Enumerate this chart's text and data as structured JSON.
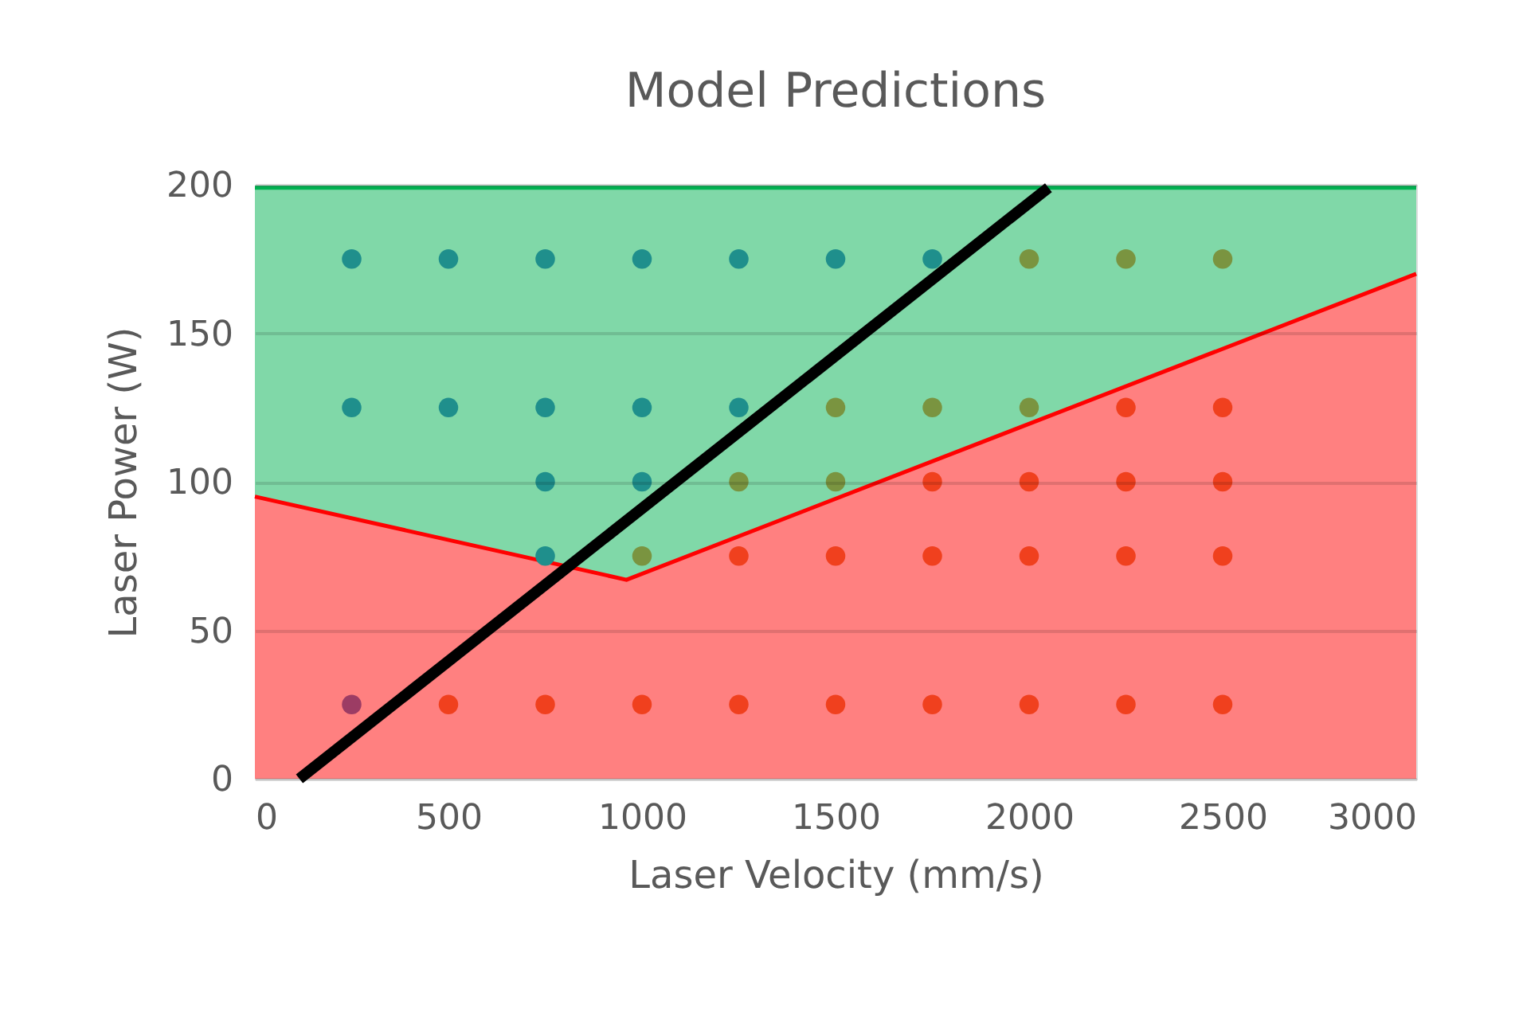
{
  "chart_data": {
    "type": "scatter",
    "title": "Model Predictions",
    "xlabel": "Laser Velocity (mm/s)",
    "ylabel": "Laser Power (W)",
    "xlim": [
      0,
      3000
    ],
    "xticks": [
      0,
      500,
      1000,
      1500,
      2000,
      2500,
      3000
    ],
    "ylim": [
      0,
      200
    ],
    "yticks": [
      0,
      50,
      100,
      150,
      200
    ],
    "grid": "y",
    "series": [
      {
        "type": "area",
        "color": "#80d8a8",
        "x": [
          0,
          3000
        ],
        "values": [
          199,
          199
        ]
      },
      {
        "type": "area",
        "color": "#ff8080",
        "x": [
          0,
          960,
          3000
        ],
        "values": [
          95,
          67,
          170
        ]
      },
      {
        "type": "line",
        "color": "#000000",
        "line_style": "solid",
        "x": [
          115,
          2050
        ],
        "values": [
          0,
          199
        ]
      },
      {
        "type": "scatter",
        "marker": "circle",
        "color": "#1f8f8c",
        "x": [
          250,
          500,
          750,
          1000,
          1250,
          1500,
          1750,
          250,
          500,
          750,
          1000,
          1250,
          750,
          1000,
          750
        ],
        "values": [
          175,
          175,
          175,
          175,
          175,
          175,
          175,
          125,
          125,
          125,
          125,
          125,
          100,
          100,
          75
        ]
      },
      {
        "type": "scatter",
        "marker": "circle",
        "color": "#7a9440",
        "x": [
          2000,
          2250,
          2500,
          1500,
          1750,
          2000,
          1250,
          1500,
          1000
        ],
        "values": [
          175,
          175,
          175,
          125,
          125,
          125,
          100,
          100,
          75
        ]
      },
      {
        "type": "scatter",
        "marker": "circle",
        "color": "#f0401e",
        "x": [
          2250,
          2500,
          1750,
          2000,
          2250,
          2500,
          1250,
          1500,
          1750,
          2000,
          2250,
          2500,
          500,
          750,
          1000,
          1250,
          1500,
          1750,
          2000,
          2250,
          2500
        ],
        "values": [
          125,
          125,
          100,
          100,
          100,
          100,
          75,
          75,
          75,
          75,
          75,
          75,
          25,
          25,
          25,
          25,
          25,
          25,
          25,
          25,
          25
        ]
      },
      {
        "type": "scatter",
        "marker": "circle",
        "color": "#9c3c64",
        "x": [
          250
        ],
        "values": [
          25
        ]
      }
    ]
  }
}
